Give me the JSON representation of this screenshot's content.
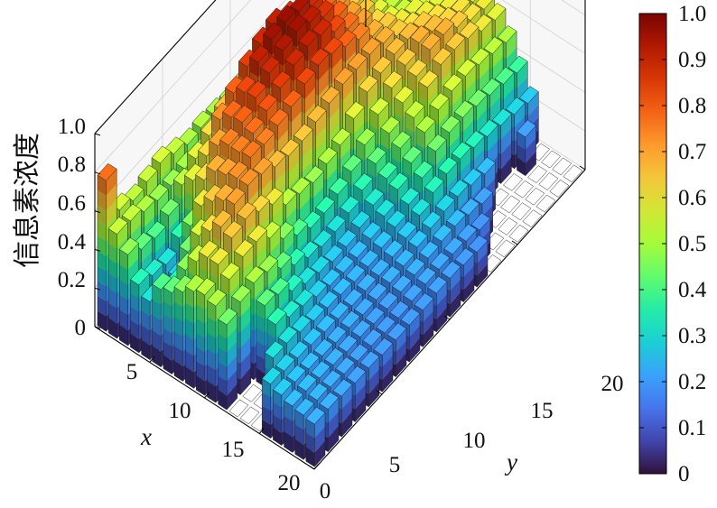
{
  "chart_data": {
    "type": "bar3d",
    "zlabel": "信息素浓度",
    "xlabel": "x",
    "ylabel": "y",
    "x_ticks": [
      "5",
      "10",
      "15",
      "20"
    ],
    "y_ticks": [
      "0",
      "5",
      "10",
      "15",
      "20"
    ],
    "z_ticks": [
      "0",
      "0.2",
      "0.4",
      "0.6",
      "0.8",
      "1.0"
    ],
    "zlim": [
      0,
      1.0
    ],
    "colorbar_ticks": [
      "0",
      "0.1",
      "0.2",
      "0.3",
      "0.4",
      "0.5",
      "0.6",
      "0.7",
      "0.8",
      "0.9",
      "1.0"
    ],
    "colorbar_range": [
      0,
      1.0
    ],
    "colormap": [
      "#30123b",
      "#4145ab",
      "#4675ed",
      "#39a2fc",
      "#1bcfd4",
      "#24eca6",
      "#61fc6c",
      "#a4fc3b",
      "#d1e834",
      "#f3c63a",
      "#fe9b2d",
      "#f36315",
      "#d93806",
      "#b11901",
      "#7a0402"
    ],
    "grid": true,
    "grid_size": [
      20,
      20
    ],
    "values": [
      [
        0.78,
        0.55,
        0.52,
        0.54,
        0.56,
        0.53,
        0.5,
        0.51,
        0.5,
        0.49,
        0.48,
        0.47,
        0.47,
        0.49,
        0.5,
        0.53,
        0.57,
        0.6,
        0.64,
        0.66
      ],
      [
        0.54,
        0.53,
        0.5,
        0.48,
        0.48,
        0.49,
        0.48,
        0.47,
        0.47,
        0.46,
        0.46,
        0.45,
        0.46,
        0.48,
        0.5,
        0.54,
        0.56,
        0.58,
        0.62,
        0.6
      ],
      [
        0.47,
        0.42,
        0.4,
        0.44,
        0.52,
        0.58,
        0.62,
        0.67,
        0.7,
        0.72,
        0.74,
        0.73,
        0.69,
        0.64,
        0.6,
        0.58,
        0.62,
        0.63,
        0.6,
        0.58
      ],
      [
        0.35,
        0.32,
        0.3,
        0.36,
        0.58,
        0.63,
        0.74,
        0.8,
        0.86,
        0.9,
        0.92,
        0.88,
        0.82,
        0.76,
        0.7,
        0.64,
        0.6,
        0.57,
        0.55,
        0.56
      ],
      [
        0.3,
        0.28,
        0.27,
        0.46,
        0.62,
        0.72,
        0.79,
        0.84,
        0.92,
        0.96,
        0.97,
        0.95,
        0.9,
        0.8,
        0.74,
        0.66,
        0.6,
        0.54,
        0.52,
        0.52
      ],
      [
        0.4,
        0.34,
        0.44,
        0.6,
        0.7,
        0.76,
        0.8,
        0.85,
        0.9,
        0.94,
        0.96,
        0.93,
        0.88,
        0.8,
        0.72,
        0.66,
        0.58,
        0.53,
        0.5,
        0.5
      ],
      [
        0.42,
        0.46,
        0.56,
        0.66,
        0.72,
        0.76,
        0.78,
        0.82,
        0.86,
        0.9,
        0.92,
        0.9,
        0.84,
        0.78,
        0.72,
        0.64,
        0.58,
        0.54,
        0.52,
        0.52
      ],
      [
        0.46,
        0.54,
        0.62,
        0.7,
        0.74,
        0.77,
        0.76,
        0.78,
        0.8,
        0.84,
        0.86,
        0.84,
        0.8,
        0.76,
        0.7,
        0.66,
        0.6,
        0.58,
        0.55,
        0.53
      ],
      [
        0.5,
        0.6,
        0.68,
        0.72,
        0.74,
        0.72,
        0.68,
        0.66,
        0.66,
        0.68,
        0.7,
        0.72,
        0.72,
        0.72,
        0.7,
        0.66,
        0.62,
        0.6,
        0.58,
        0.57
      ],
      [
        0.52,
        0.6,
        0.66,
        0.68,
        0.64,
        0.6,
        0.52,
        0.5,
        0.48,
        0.5,
        0.52,
        0.58,
        0.64,
        0.66,
        0.68,
        0.68,
        0.66,
        0.62,
        0.6,
        0.58
      ],
      [
        0.5,
        0.56,
        0.6,
        0.6,
        0.54,
        0.46,
        0.4,
        0.36,
        0.36,
        0.38,
        0.42,
        0.48,
        0.56,
        0.62,
        0.66,
        0.7,
        0.68,
        0.64,
        0.62,
        0.6
      ],
      [
        0.44,
        0.48,
        0.5,
        0.48,
        0.42,
        0.36,
        0.32,
        0.3,
        0.3,
        0.32,
        0.36,
        0.42,
        0.5,
        0.58,
        0.64,
        0.7,
        0.7,
        0.66,
        0.62,
        0.6
      ],
      [
        0.0,
        0.0,
        0.42,
        0.4,
        0.34,
        0.3,
        0.28,
        0.26,
        0.26,
        0.28,
        0.32,
        0.38,
        0.46,
        0.54,
        0.62,
        0.66,
        0.66,
        0.64,
        0.6,
        0.58
      ],
      [
        0.0,
        0.0,
        0.36,
        0.32,
        0.3,
        0.27,
        0.25,
        0.24,
        0.24,
        0.26,
        0.3,
        0.36,
        0.42,
        0.5,
        0.54,
        0.56,
        0.56,
        0.54,
        0.52,
        0.5
      ],
      [
        0.0,
        0.3,
        0.3,
        0.28,
        0.26,
        0.25,
        0.24,
        0.23,
        0.23,
        0.25,
        0.28,
        0.32,
        0.38,
        0.44,
        0.46,
        0.46,
        0.44,
        0.42,
        0.4,
        0.38
      ],
      [
        0.28,
        0.27,
        0.26,
        0.25,
        0.24,
        0.23,
        0.22,
        0.22,
        0.22,
        0.24,
        0.26,
        0.3,
        0.34,
        0.36,
        0.36,
        0.34,
        0.32,
        0.3,
        0.28,
        0.26
      ],
      [
        0.26,
        0.25,
        0.24,
        0.23,
        0.22,
        0.22,
        0.21,
        0.21,
        0.22,
        0.23,
        0.25,
        0.27,
        0.28,
        0.28,
        0.26,
        0.24,
        0.0,
        0.0,
        0.2,
        0.0
      ],
      [
        0.24,
        0.24,
        0.23,
        0.22,
        0.21,
        0.21,
        0.2,
        0.2,
        0.21,
        0.22,
        0.23,
        0.24,
        0.24,
        0.22,
        0.2,
        0.0,
        0.0,
        0.0,
        0.0,
        0.0
      ],
      [
        0.23,
        0.23,
        0.22,
        0.21,
        0.2,
        0.2,
        0.19,
        0.19,
        0.2,
        0.21,
        0.21,
        0.21,
        0.2,
        0.18,
        0.0,
        0.0,
        0.0,
        0.0,
        0.0,
        0.0
      ],
      [
        0.22,
        0.22,
        0.21,
        0.2,
        0.2,
        0.19,
        0.19,
        0.19,
        0.19,
        0.2,
        0.2,
        0.19,
        0.18,
        0.0,
        0.0,
        0.0,
        0.0,
        0.0,
        0.0,
        0.0
      ]
    ]
  }
}
